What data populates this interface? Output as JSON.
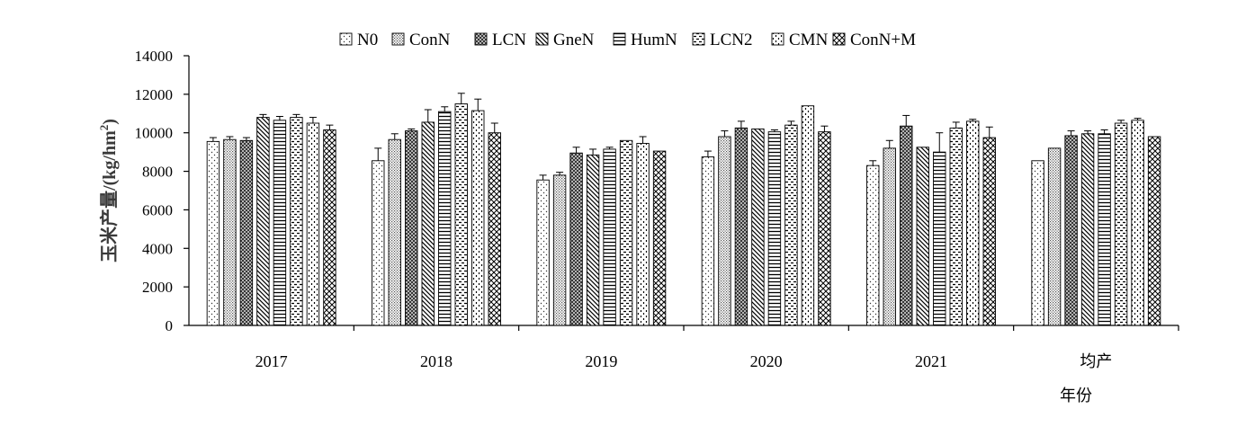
{
  "chart_data": {
    "type": "bar",
    "categories": [
      "2017",
      "2018",
      "2019",
      "2020",
      "2021",
      "均产"
    ],
    "series": [
      {
        "name": "N0",
        "values": [
          9550,
          8550,
          7550,
          8750,
          8300,
          8550
        ],
        "errors": [
          200,
          650,
          250,
          300,
          250,
          0
        ]
      },
      {
        "name": "ConN",
        "values": [
          9650,
          9650,
          7800,
          9800,
          9200,
          9200
        ],
        "errors": [
          150,
          300,
          150,
          300,
          400,
          0
        ]
      },
      {
        "name": "LCN",
        "values": [
          9600,
          10100,
          8950,
          10250,
          10350,
          9850
        ],
        "errors": [
          150,
          100,
          300,
          350,
          550,
          250
        ]
      },
      {
        "name": "GneN",
        "values": [
          10800,
          10550,
          8850,
          10200,
          9250,
          9950
        ],
        "errors": [
          150,
          650,
          300,
          0,
          0,
          150
        ]
      },
      {
        "name": "HumN",
        "values": [
          10650,
          11100,
          9150,
          10050,
          9000,
          9950
        ],
        "errors": [
          200,
          250,
          100,
          100,
          1000,
          200
        ]
      },
      {
        "name": "LCN2",
        "values": [
          10800,
          11500,
          9600,
          10400,
          10250,
          10500
        ],
        "errors": [
          150,
          550,
          0,
          200,
          300,
          150
        ]
      },
      {
        "name": "CMN",
        "values": [
          10500,
          11150,
          9450,
          11400,
          10600,
          10650
        ],
        "errors": [
          300,
          600,
          350,
          0,
          100,
          100
        ]
      },
      {
        "name": "ConN+M",
        "values": [
          10150,
          10000,
          9050,
          10050,
          9750,
          9800
        ],
        "errors": [
          250,
          500,
          0,
          300,
          550,
          0
        ]
      }
    ],
    "ylabel_text": "玉米产量/(kg/hm",
    "ylabel_sup": "2",
    "ylabel_close": ")",
    "xlabel": "年份",
    "ylim": [
      0,
      14000
    ],
    "yticks": [
      "0",
      "2000",
      "4000",
      "6000",
      "8000",
      "10000",
      "12000",
      "14000"
    ],
    "grid": false,
    "legend_position": "top"
  }
}
